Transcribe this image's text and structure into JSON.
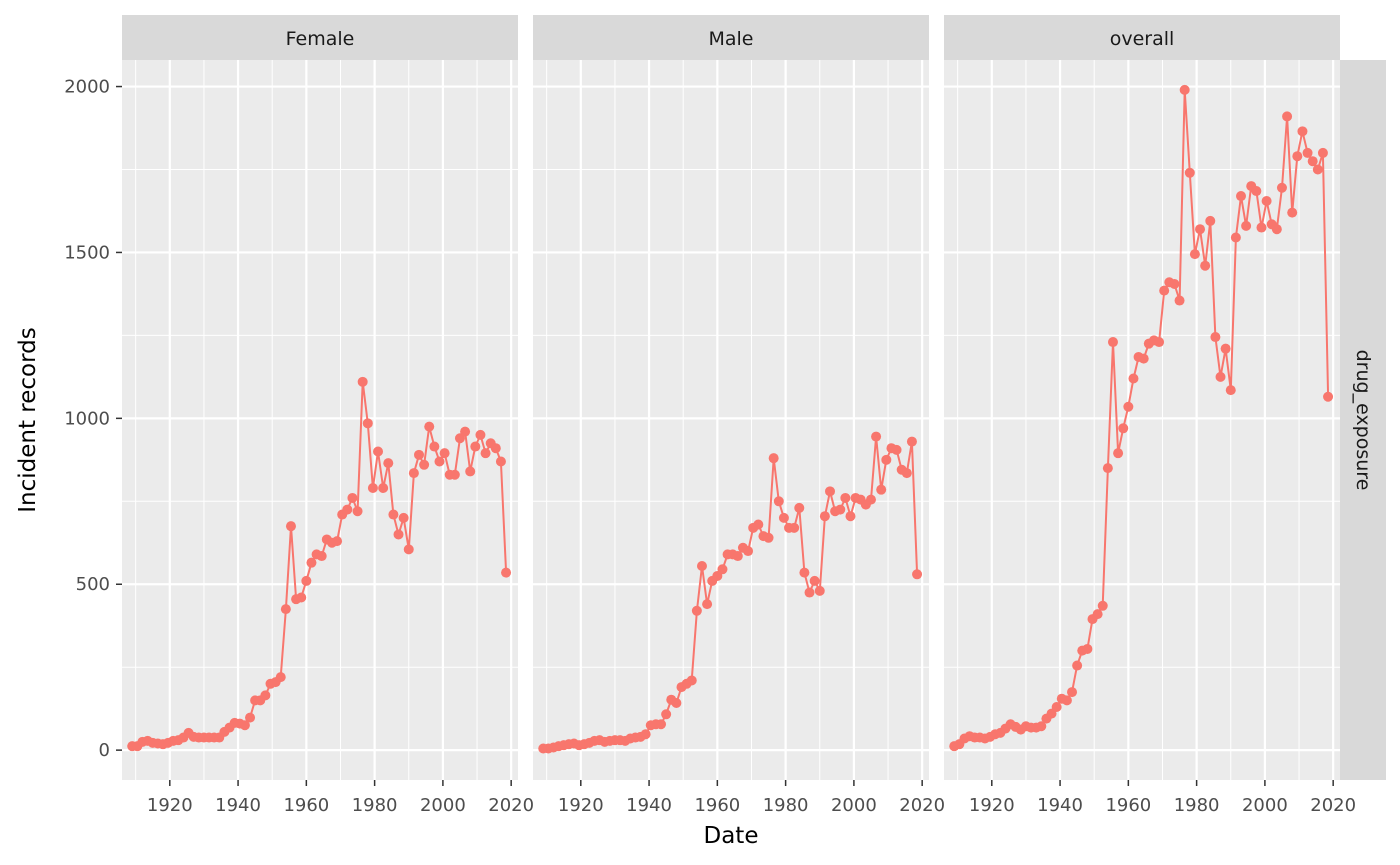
{
  "chart_data": {
    "type": "line",
    "xlabel": "Date",
    "ylabel": "Incident records",
    "facet_row_label": "drug_exposure",
    "panels": [
      "Female",
      "Male",
      "overall"
    ],
    "xlim": [
      1906,
      2022
    ],
    "ylim": [
      -90,
      2080
    ],
    "xticks": [
      1920,
      1940,
      1960,
      1980,
      2000,
      2020
    ],
    "yticks": [
      0,
      500,
      1000,
      1500,
      2000
    ],
    "grid": true,
    "legend": "none",
    "colors": {
      "line": "#f8766d",
      "panel_bg": "#ebebeb",
      "grid": "#ffffff",
      "strip_bg": "#d9d9d9",
      "tick": "#333333"
    },
    "series": [
      {
        "panel": "Female",
        "x": [
          1909,
          1910.5,
          1912,
          1913.5,
          1915,
          1916.5,
          1918,
          1919.5,
          1921,
          1922.5,
          1924,
          1925.5,
          1927,
          1928.5,
          1930,
          1931.5,
          1933,
          1934.5,
          1936,
          1937.5,
          1939,
          1940.5,
          1942,
          1943.5,
          1945,
          1946.5,
          1948,
          1949.5,
          1951,
          1952.5,
          1954,
          1955.5,
          1957,
          1958.5,
          1960,
          1961.5,
          1963,
          1964.5,
          1966,
          1967.5,
          1969,
          1970.5,
          1972,
          1973.5,
          1975,
          1976.5,
          1978,
          1979.5,
          1981,
          1982.5,
          1984,
          1985.5,
          1987,
          1988.5,
          1990,
          1991.5,
          1993,
          1994.5,
          1996,
          1997.5,
          1999,
          2000.5,
          2002,
          2003.5,
          2005,
          2006.5,
          2008,
          2009.5,
          2011,
          2012.5,
          2014,
          2015.5,
          2017,
          2018.5
        ],
        "y": [
          12,
          12,
          25,
          28,
          22,
          20,
          18,
          22,
          28,
          30,
          38,
          52,
          40,
          38,
          38,
          38,
          38,
          38,
          55,
          68,
          82,
          80,
          75,
          98,
          150,
          150,
          165,
          200,
          205,
          220,
          425,
          675,
          455,
          460,
          510,
          565,
          590,
          585,
          635,
          625,
          630,
          710,
          725,
          760,
          720,
          1110,
          985,
          790,
          900,
          790,
          865,
          710,
          650,
          700,
          605,
          835,
          890,
          860,
          975,
          915,
          870,
          895,
          830,
          830,
          940,
          960,
          840,
          915,
          950,
          895,
          925,
          910,
          870,
          535
        ]
      },
      {
        "panel": "Male",
        "x": [
          1909,
          1910.5,
          1912,
          1913.5,
          1915,
          1916.5,
          1918,
          1919.5,
          1921,
          1922.5,
          1924,
          1925.5,
          1927,
          1928.5,
          1930,
          1931.5,
          1933,
          1934.5,
          1936,
          1937.5,
          1939,
          1940.5,
          1942,
          1943.5,
          1945,
          1946.5,
          1948,
          1949.5,
          1951,
          1952.5,
          1954,
          1955.5,
          1957,
          1958.5,
          1960,
          1961.5,
          1963,
          1964.5,
          1966,
          1967.5,
          1969,
          1970.5,
          1972,
          1973.5,
          1975,
          1976.5,
          1978,
          1979.5,
          1981,
          1982.5,
          1984,
          1985.5,
          1987,
          1988.5,
          1990,
          1991.5,
          1993,
          1994.5,
          1996,
          1997.5,
          1999,
          2000.5,
          2002,
          2003.5,
          2005,
          2006.5,
          2008,
          2009.5,
          2011,
          2012.5,
          2014,
          2015.5,
          2017,
          2018.5
        ],
        "y": [
          5,
          5,
          8,
          12,
          15,
          18,
          20,
          15,
          18,
          22,
          28,
          30,
          25,
          28,
          30,
          30,
          28,
          35,
          38,
          40,
          48,
          75,
          78,
          78,
          108,
          152,
          142,
          190,
          200,
          210,
          420,
          555,
          440,
          510,
          525,
          545,
          590,
          590,
          585,
          610,
          600,
          670,
          680,
          645,
          640,
          880,
          750,
          700,
          670,
          670,
          730,
          535,
          475,
          510,
          480,
          705,
          780,
          720,
          725,
          760,
          705,
          760,
          755,
          740,
          755,
          945,
          785,
          875,
          910,
          905,
          845,
          835,
          930,
          530
        ]
      },
      {
        "panel": "overall",
        "x": [
          1909,
          1910.5,
          1912,
          1913.5,
          1915,
          1916.5,
          1918,
          1919.5,
          1921,
          1922.5,
          1924,
          1925.5,
          1927,
          1928.5,
          1930,
          1931.5,
          1933,
          1934.5,
          1936,
          1937.5,
          1939,
          1940.5,
          1942,
          1943.5,
          1945,
          1946.5,
          1948,
          1949.5,
          1951,
          1952.5,
          1954,
          1955.5,
          1957,
          1958.5,
          1960,
          1961.5,
          1963,
          1964.5,
          1966,
          1967.5,
          1969,
          1970.5,
          1972,
          1973.5,
          1975,
          1976.5,
          1978,
          1979.5,
          1981,
          1982.5,
          1984,
          1985.5,
          1987,
          1988.5,
          1990,
          1991.5,
          1993,
          1994.5,
          1996,
          1997.5,
          1999,
          2000.5,
          2002,
          2003.5,
          2005,
          2006.5,
          2008,
          2009.5,
          2011,
          2012.5,
          2014,
          2015.5,
          2017,
          2018.5
        ],
        "y": [
          12,
          18,
          35,
          42,
          38,
          38,
          35,
          40,
          48,
          52,
          65,
          78,
          70,
          62,
          72,
          68,
          68,
          72,
          95,
          110,
          130,
          155,
          150,
          175,
          255,
          300,
          305,
          395,
          410,
          435,
          850,
          1230,
          895,
          970,
          1035,
          1120,
          1185,
          1180,
          1225,
          1235,
          1230,
          1385,
          1410,
          1405,
          1355,
          1990,
          1740,
          1495,
          1570,
          1460,
          1595,
          1245,
          1125,
          1210,
          1085,
          1545,
          1670,
          1580,
          1700,
          1685,
          1575,
          1655,
          1585,
          1570,
          1695,
          1910,
          1620,
          1790,
          1865,
          1800,
          1775,
          1750,
          1800,
          1065
        ]
      }
    ]
  }
}
